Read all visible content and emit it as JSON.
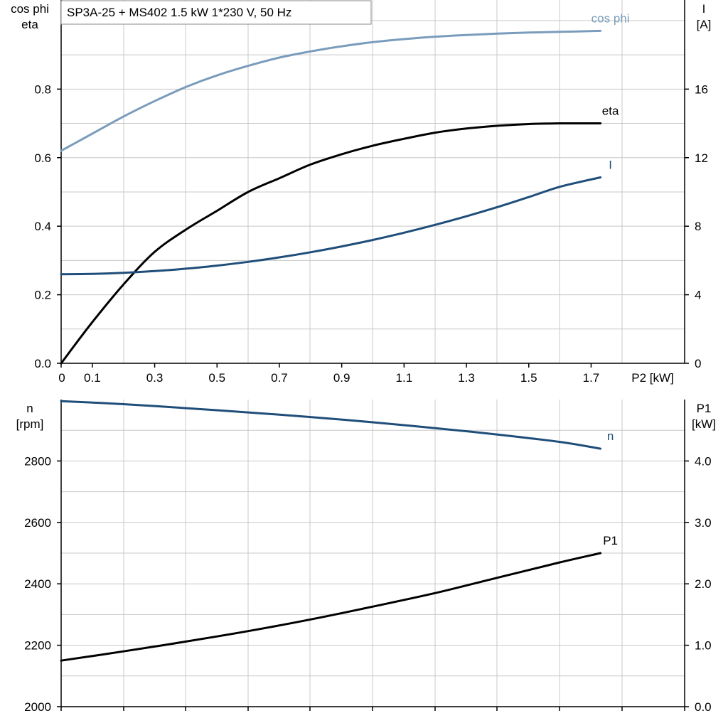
{
  "title": "SP3A-25 + MS402   1.5 kW   1*230 V, 50 Hz",
  "chart_data": [
    {
      "type": "line",
      "xlabel": "P2 [kW]",
      "xlim": [
        0,
        2.0
      ],
      "x_ticks": [
        "0",
        "0.1",
        "0.3",
        "0.5",
        "0.7",
        "0.9",
        "1.1",
        "1.3",
        "1.5",
        "1.7"
      ],
      "x_tick_values": [
        0,
        0.1,
        0.3,
        0.5,
        0.7,
        0.9,
        1.1,
        1.3,
        1.5,
        1.7
      ],
      "ylabel_left": [
        "cos phi",
        "eta"
      ],
      "ylim_left": [
        0,
        1.06
      ],
      "yticks_left": [
        "0.0",
        "0.2",
        "0.4",
        "0.6",
        "0.8"
      ],
      "yticks_left_values": [
        0,
        0.2,
        0.4,
        0.6,
        0.8
      ],
      "ylabel_right": [
        "I",
        "[A]"
      ],
      "ylim_right": [
        0,
        21.2
      ],
      "yticks_right": [
        "0",
        "4",
        "8",
        "12",
        "16"
      ],
      "yticks_right_values": [
        0,
        4,
        8,
        12,
        16
      ],
      "grid": true,
      "series": [
        {
          "name": "cos phi",
          "axis": "left",
          "color": "#7a9cbc",
          "x": [
            0,
            0.1,
            0.2,
            0.3,
            0.4,
            0.5,
            0.6,
            0.7,
            0.8,
            0.9,
            1.0,
            1.1,
            1.2,
            1.3,
            1.4,
            1.5,
            1.6,
            1.73
          ],
          "y": [
            0.62,
            0.67,
            0.72,
            0.765,
            0.806,
            0.84,
            0.868,
            0.892,
            0.91,
            0.925,
            0.937,
            0.946,
            0.953,
            0.958,
            0.962,
            0.965,
            0.967,
            0.97
          ]
        },
        {
          "name": "eta",
          "axis": "left",
          "color": "#000000",
          "x": [
            0,
            0.1,
            0.2,
            0.3,
            0.4,
            0.5,
            0.6,
            0.7,
            0.8,
            0.9,
            1.0,
            1.1,
            1.2,
            1.3,
            1.4,
            1.5,
            1.6,
            1.73
          ],
          "y": [
            0.0,
            0.12,
            0.23,
            0.325,
            0.39,
            0.445,
            0.5,
            0.54,
            0.58,
            0.61,
            0.635,
            0.655,
            0.673,
            0.685,
            0.693,
            0.698,
            0.7,
            0.7
          ]
        },
        {
          "name": "I",
          "axis": "right",
          "color": "#1f4e7a",
          "x": [
            0,
            0.1,
            0.2,
            0.3,
            0.4,
            0.5,
            0.6,
            0.7,
            0.8,
            0.9,
            1.0,
            1.1,
            1.2,
            1.3,
            1.4,
            1.5,
            1.6,
            1.73
          ],
          "y": [
            5.2,
            5.22,
            5.28,
            5.38,
            5.52,
            5.7,
            5.92,
            6.18,
            6.48,
            6.82,
            7.2,
            7.62,
            8.08,
            8.58,
            9.12,
            9.7,
            10.3,
            10.85
          ]
        }
      ]
    },
    {
      "type": "line",
      "xlim": [
        0,
        2.0
      ],
      "ylabel_left": [
        "n",
        "[rpm]"
      ],
      "ylim_left": [
        2000,
        3000
      ],
      "yticks_left": [
        "2000",
        "2200",
        "2400",
        "2600",
        "2800"
      ],
      "yticks_left_values": [
        2000,
        2200,
        2400,
        2600,
        2800
      ],
      "ylabel_right": [
        "P1",
        "[kW]"
      ],
      "ylim_right": [
        0,
        5.0
      ],
      "yticks_right": [
        "0.0",
        "1.0",
        "2.0",
        "3.0",
        "4.0"
      ],
      "yticks_right_values": [
        0,
        1,
        2,
        3,
        4
      ],
      "grid": true,
      "series": [
        {
          "name": "n",
          "axis": "left",
          "color": "#1f4e7a",
          "x": [
            0,
            0.2,
            0.4,
            0.6,
            0.8,
            1.0,
            1.2,
            1.4,
            1.6,
            1.73
          ],
          "y": [
            2995,
            2985,
            2972,
            2958,
            2943,
            2926,
            2907,
            2886,
            2862,
            2840
          ]
        },
        {
          "name": "P1",
          "axis": "right",
          "color": "#000000",
          "x": [
            0,
            0.2,
            0.4,
            0.6,
            0.8,
            1.0,
            1.2,
            1.4,
            1.6,
            1.73
          ],
          "y": [
            0.75,
            0.9,
            1.06,
            1.23,
            1.42,
            1.63,
            1.85,
            2.1,
            2.35,
            2.5
          ]
        }
      ]
    }
  ]
}
